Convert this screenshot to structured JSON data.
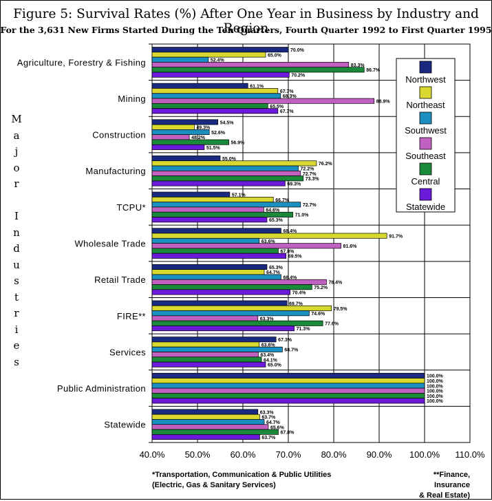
{
  "title": "Figure 5:  Survival Rates (%) After One Year in Business by Industry and Region",
  "subtitle": "For the 3,631 New Firms Started During the Ten Quarters, Fourth Quarter 1992 to First Quarter 1995",
  "yaxis_title_letters": [
    "M",
    "a",
    "j",
    "o",
    "r",
    "",
    "I",
    "n",
    "d",
    "u",
    "s",
    "t",
    "r",
    "i",
    "e",
    "s"
  ],
  "footnotes": {
    "tcpu_line1": "*Transportation, Communication & Public Utilities",
    "tcpu_line2": "(Electric, Gas & Sanitary Services)",
    "fire_line1": "**Finance, Insurance",
    "fire_line2": "& Real Estate)"
  },
  "chart_data": {
    "type": "bar",
    "orientation": "horizontal",
    "title": "Figure 5:  Survival Rates (%) After One Year in Business by Industry and Region",
    "subtitle": "For the 3,631 New Firms Started During the Ten Quarters, Fourth Quarter 1992 to First Quarter 1995",
    "ylabel": "Major Industries",
    "xlabel": "",
    "xlim": [
      40,
      110
    ],
    "xticks": [
      "40.0%",
      "50.0%",
      "60.0%",
      "70.0%",
      "80.0%",
      "90.0%",
      "100.0%",
      "110.0%"
    ],
    "grid": true,
    "legend_position": "top-right",
    "categories": [
      "Agriculture, Forestry & Fishing",
      "Mining",
      "Construction",
      "Manufacturing",
      "TCPU*",
      "Wholesale Trade",
      "Retail Trade",
      "FIRE**",
      "Services",
      "Public Administration",
      "Statewide"
    ],
    "series": [
      {
        "name": "Northwest",
        "color": "#1a2a80",
        "values": [
          70.0,
          61.1,
          54.5,
          55.0,
          57.1,
          68.4,
          65.3,
          69.7,
          67.3,
          100.0,
          63.3
        ],
        "labels": [
          "70.0%",
          "61.1%",
          "54.5%",
          "55.0%",
          "57.1%",
          "68.4%",
          "65.3%",
          "69.7%",
          "67.3%",
          "100.0%",
          "63.3%"
        ]
      },
      {
        "name": "Northeast",
        "color": "#d8d830",
        "values": [
          65.0,
          67.7,
          49.3,
          76.2,
          66.7,
          91.7,
          64.7,
          79.5,
          63.6,
          100.0,
          63.7
        ],
        "labels": [
          "65.0%",
          "67.7%",
          "49.3%",
          "76.2%",
          "66.7%",
          "91.7%",
          "64.7%",
          "79.5%",
          "63.6%",
          "100.0%",
          "63.7%"
        ]
      },
      {
        "name": "Southwest",
        "color": "#1a8fc0",
        "values": [
          52.4,
          68.3,
          52.6,
          72.2,
          72.7,
          63.6,
          68.4,
          74.6,
          68.7,
          100.0,
          64.7
        ],
        "labels": [
          "52.4%",
          "68.3%",
          "52.6%",
          "72.2%",
          "72.7%",
          "63.6%",
          "68.4%",
          "74.6%",
          "68.7%",
          "100.0%",
          "64.7%"
        ]
      },
      {
        "name": "Southeast",
        "color": "#c060c0",
        "values": [
          83.3,
          88.9,
          48.2,
          72.7,
          64.6,
          81.6,
          78.4,
          63.3,
          63.4,
          100.0,
          65.6
        ],
        "labels": [
          "83.3%",
          "88.9%",
          "48.2%",
          "72.7%",
          "64.6%",
          "81.6%",
          "78.4%",
          "63.3%",
          "63.4%",
          "100.0%",
          "65.6%"
        ]
      },
      {
        "name": "Central",
        "color": "#1a8a3a",
        "values": [
          86.7,
          65.5,
          56.9,
          73.3,
          71.0,
          67.8,
          75.2,
          77.6,
          64.1,
          100.0,
          67.8
        ],
        "labels": [
          "86.7%",
          "65.5%",
          "56.9%",
          "73.3%",
          "71.0%",
          "67.8%",
          "75.2%",
          "77.6%",
          "64.1%",
          "100.0%",
          "67.8%"
        ]
      },
      {
        "name": "Statewide",
        "color": "#6a1ad8",
        "values": [
          70.2,
          67.7,
          51.5,
          69.3,
          65.3,
          69.5,
          70.4,
          71.3,
          65.0,
          100.0,
          63.7
        ],
        "labels": [
          "70.2%",
          "67.7%",
          "51.5%",
          "69.3%",
          "65.3%",
          "69.5%",
          "70.4%",
          "71.3%",
          "65.0%",
          "100.0%",
          "63.7%"
        ]
      }
    ]
  }
}
